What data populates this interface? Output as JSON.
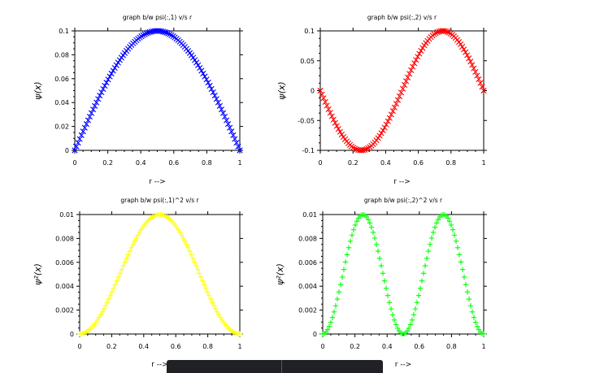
{
  "chart_data": [
    {
      "type": "scatter",
      "title": "graph b/w  psi(:,1) v/s r",
      "xlabel": "r -->",
      "ylabel": "ψ(x)",
      "xlim": [
        0,
        1
      ],
      "ylim": [
        0,
        0.1
      ],
      "xticks": [
        "0",
        "0.2",
        "0.4",
        "0.6",
        "0.8",
        "1"
      ],
      "yticks": [
        "0",
        "0.02",
        "0.04",
        "0.06",
        "0.08",
        "0.1"
      ],
      "color": "#0000ff",
      "marker": "x",
      "series": [
        {
          "function": "0.1*sin(pi*x)",
          "n_points": 100,
          "x": [
            0,
            0.1,
            0.2,
            0.3,
            0.4,
            0.5,
            0.6,
            0.7,
            0.8,
            0.9,
            1.0
          ],
          "y": [
            0,
            0.031,
            0.059,
            0.081,
            0.095,
            0.1,
            0.095,
            0.081,
            0.059,
            0.031,
            0
          ]
        }
      ]
    },
    {
      "type": "scatter",
      "title": "graph b/w  psi(:,2) v/s r",
      "xlabel": "r -->",
      "ylabel": "ψ(x)",
      "xlim": [
        0,
        1
      ],
      "ylim": [
        -0.1,
        0.1
      ],
      "xticks": [
        "0",
        "0.2",
        "0.4",
        "0.6",
        "0.8",
        "1"
      ],
      "yticks": [
        "-0.1",
        "-0.05",
        "0",
        "0.05",
        "0.1"
      ],
      "color": "#ff0000",
      "marker": "x",
      "series": [
        {
          "function": "-0.1*sin(2*pi*x)",
          "n_points": 100,
          "x": [
            0,
            0.1,
            0.2,
            0.25,
            0.3,
            0.4,
            0.5,
            0.6,
            0.7,
            0.75,
            0.8,
            0.9,
            1.0
          ],
          "y": [
            0,
            -0.059,
            -0.095,
            -0.1,
            -0.095,
            -0.059,
            0,
            0.059,
            0.095,
            0.1,
            0.095,
            0.059,
            0
          ]
        }
      ]
    },
    {
      "type": "scatter",
      "title": "graph b/w  psi(:,1)^2  v/s r",
      "xlabel": "r -->",
      "ylabel": "ψ²(x)",
      "xlim": [
        0,
        1
      ],
      "ylim": [
        0,
        0.01
      ],
      "xticks": [
        "0",
        "0.2",
        "0.4",
        "0.6",
        "0.8",
        "1"
      ],
      "yticks": [
        "0",
        "0.002",
        "0.004",
        "0.006",
        "0.008",
        "0.01"
      ],
      "color": "#ffff00",
      "marker": "+",
      "series": [
        {
          "function": "0.01*sin(pi*x)^2",
          "n_points": 100,
          "x": [
            0,
            0.1,
            0.2,
            0.3,
            0.4,
            0.5,
            0.6,
            0.7,
            0.8,
            0.9,
            1.0
          ],
          "y": [
            0,
            0.00095,
            0.00345,
            0.00655,
            0.00905,
            0.01,
            0.00905,
            0.00655,
            0.00345,
            0.00095,
            0
          ]
        }
      ]
    },
    {
      "type": "scatter",
      "title": "graph b/w  psi(:,2)^2  v/s r",
      "xlabel": "r -->",
      "ylabel": "ψ²(x)",
      "xlim": [
        0,
        1
      ],
      "ylim": [
        0,
        0.01
      ],
      "xticks": [
        "0",
        "0.2",
        "0.4",
        "0.6",
        "0.8",
        "1"
      ],
      "yticks": [
        "0",
        "0.002",
        "0.004",
        "0.006",
        "0.008",
        "0.01"
      ],
      "color": "#00ff00",
      "marker": "+",
      "series": [
        {
          "function": "0.01*sin(2*pi*x)^2",
          "n_points": 100,
          "x": [
            0,
            0.1,
            0.2,
            0.25,
            0.3,
            0.4,
            0.5,
            0.6,
            0.7,
            0.75,
            0.8,
            0.9,
            1.0
          ],
          "y": [
            0,
            0.00345,
            0.00905,
            0.01,
            0.00905,
            0.00345,
            0,
            0.00345,
            0.00905,
            0.01,
            0.00905,
            0.00345,
            0
          ]
        }
      ]
    }
  ],
  "overlay": {
    "background": "#202124"
  }
}
